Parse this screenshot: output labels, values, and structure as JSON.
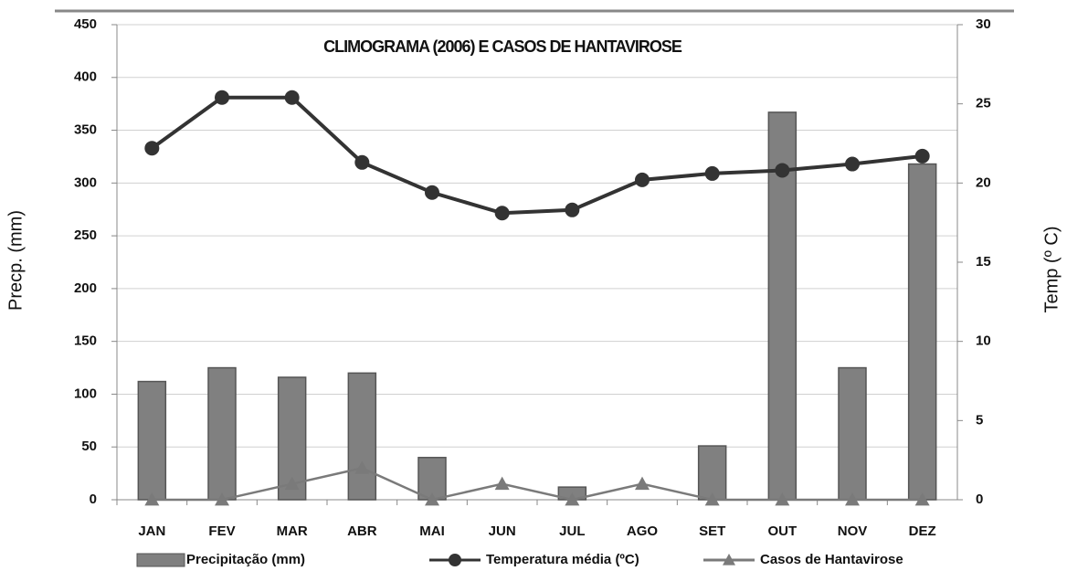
{
  "chart_data": {
    "type": "bar",
    "title": "CLIMOGRAMA (2006) E CASOS DE HANTAVIROSE",
    "y_label": "Precp. (mm)",
    "y2_label": "Temp (º C)",
    "categories": [
      "JAN",
      "FEV",
      "MAR",
      "ABR",
      "MAI",
      "JUN",
      "JUL",
      "AGO",
      "SET",
      "OUT",
      "NOV",
      "DEZ"
    ],
    "series": [
      {
        "name": "Precipitação (mm)",
        "type": "bar",
        "color": "#808080",
        "values": [
          112,
          125,
          116,
          120,
          40,
          0,
          12,
          0,
          51,
          367,
          125,
          318
        ]
      },
      {
        "name": "Temperatura média (ºC)",
        "type": "line",
        "marker": "circle",
        "axis": "y2",
        "color": "#333333",
        "values": [
          22.2,
          25.4,
          25.4,
          21.3,
          19.4,
          18.1,
          18.3,
          20.2,
          20.6,
          20.8,
          21.2,
          21.7
        ]
      },
      {
        "name": "Casos de Hantavirose",
        "type": "line",
        "marker": "triangle",
        "axis": "y2",
        "color": "#7a7a7a",
        "values": [
          0,
          0,
          1,
          2,
          0,
          1,
          0,
          1,
          0,
          0,
          0,
          0
        ]
      }
    ],
    "ylim": [
      0,
      450
    ],
    "yticks": [
      0,
      50,
      100,
      150,
      200,
      250,
      300,
      350,
      400,
      450
    ],
    "y2lim": [
      0,
      30
    ],
    "y2ticks": [
      0,
      5,
      10,
      15,
      20,
      25,
      30
    ],
    "grid": true,
    "legend": "bottom"
  }
}
